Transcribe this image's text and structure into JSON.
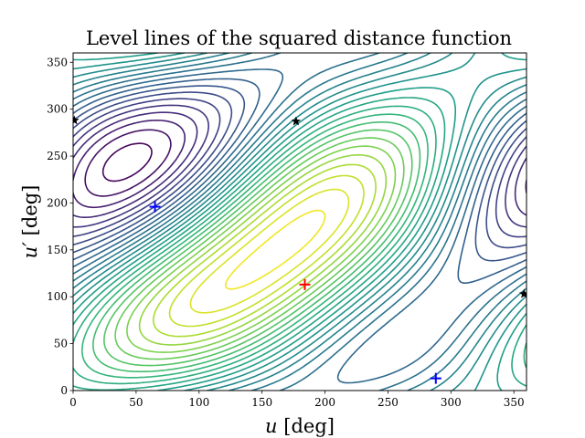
{
  "chart_data": {
    "type": "contour",
    "title": "Level lines of the squared distance function",
    "xlabel": {
      "var": "u",
      "unit": "[deg]"
    },
    "ylabel": {
      "var": "u′",
      "unit": "[deg]"
    },
    "xlim": [
      0,
      360
    ],
    "ylim": [
      0,
      360
    ],
    "xticks": [
      0,
      50,
      100,
      150,
      200,
      250,
      300,
      350
    ],
    "yticks": [
      0,
      50,
      100,
      150,
      200,
      250,
      300,
      350
    ],
    "colormap": "viridis",
    "grid": false,
    "minimum": {
      "u": 184,
      "u_prime": 113,
      "marker": "+",
      "color": "#ff0000"
    },
    "local_minima": [
      {
        "u": 65,
        "u_prime": 196,
        "marker": "+",
        "color": "#0000ff"
      },
      {
        "u": 288,
        "u_prime": 13,
        "marker": "+",
        "color": "#0000ff"
      }
    ],
    "saddle_points": [
      {
        "u": 177,
        "u_prime": 287,
        "marker": "*",
        "color": "#000000"
      },
      {
        "u": 1,
        "u_prime": 288,
        "marker": "*",
        "color": "#000000"
      },
      {
        "u": 358,
        "u_prime": 103,
        "marker": "*",
        "color": "#000000"
      }
    ]
  }
}
